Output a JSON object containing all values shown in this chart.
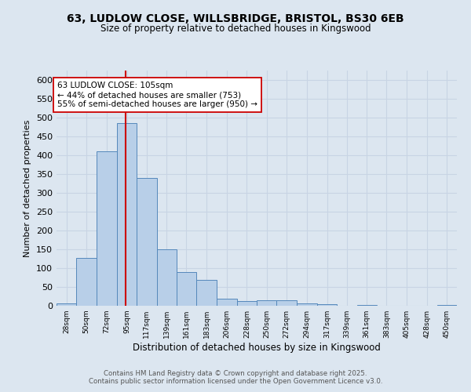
{
  "title_line1": "63, LUDLOW CLOSE, WILLSBRIDGE, BRISTOL, BS30 6EB",
  "title_line2": "Size of property relative to detached houses in Kingswood",
  "xlabel": "Distribution of detached houses by size in Kingswood",
  "ylabel": "Number of detached properties",
  "bar_edges": [
    28,
    50,
    72,
    95,
    117,
    139,
    161,
    183,
    206,
    228,
    250,
    272,
    294,
    317,
    339,
    361,
    383,
    405,
    428,
    450,
    472
  ],
  "bar_heights": [
    7,
    128,
    410,
    485,
    340,
    150,
    90,
    68,
    18,
    13,
    15,
    15,
    6,
    5,
    0,
    3,
    0,
    0,
    0,
    3
  ],
  "bar_color": "#b8cfe8",
  "bar_edge_color": "#5588bb",
  "vline_x": 105,
  "vline_color": "#cc0000",
  "annotation_text": "63 LUDLOW CLOSE: 105sqm\n← 44% of detached houses are smaller (753)\n55% of semi-detached houses are larger (950) →",
  "annotation_box_color": "#ffffff",
  "annotation_box_edge": "#cc0000",
  "grid_color": "#c8d4e4",
  "background_color": "#dce6f0",
  "ylim": [
    0,
    625
  ],
  "yticks": [
    0,
    50,
    100,
    150,
    200,
    250,
    300,
    350,
    400,
    450,
    500,
    550,
    600
  ],
  "footer_line1": "Contains HM Land Registry data © Crown copyright and database right 2025.",
  "footer_line2": "Contains public sector information licensed under the Open Government Licence v3.0."
}
